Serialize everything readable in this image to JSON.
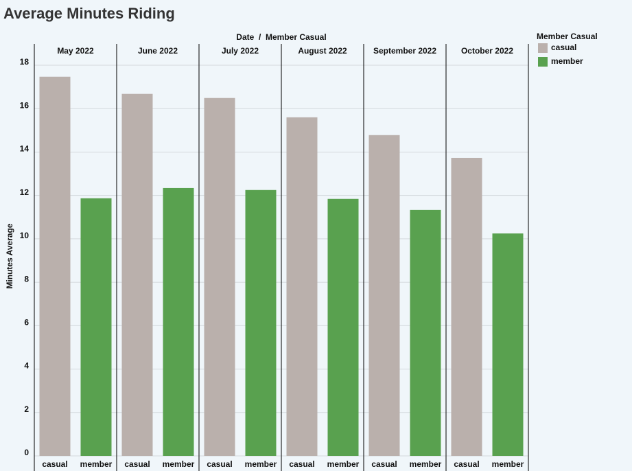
{
  "chart_data": {
    "type": "grouped_bar",
    "title": "Average Minutes Riding",
    "xlabel": "Date  /  Member Casual",
    "ylabel": "Minutes Average",
    "legend_title": "Member Casual",
    "legend": "right",
    "categories": [
      "May 2022",
      "June 2022",
      "July 2022",
      "August 2022",
      "September 2022",
      "October 2022"
    ],
    "series": [
      {
        "name": "casual",
        "color": "#bab0ac",
        "values": [
          17.47,
          16.68,
          16.49,
          15.6,
          14.78,
          13.73
        ]
      },
      {
        "name": "member",
        "color": "#59a14f",
        "values": [
          11.87,
          12.34,
          12.25,
          11.84,
          11.33,
          10.25
        ]
      }
    ],
    "ylim": [
      0,
      18
    ],
    "yticks": [
      0,
      2,
      4,
      6,
      8,
      10,
      12,
      14,
      16,
      18
    ],
    "grid": true
  }
}
